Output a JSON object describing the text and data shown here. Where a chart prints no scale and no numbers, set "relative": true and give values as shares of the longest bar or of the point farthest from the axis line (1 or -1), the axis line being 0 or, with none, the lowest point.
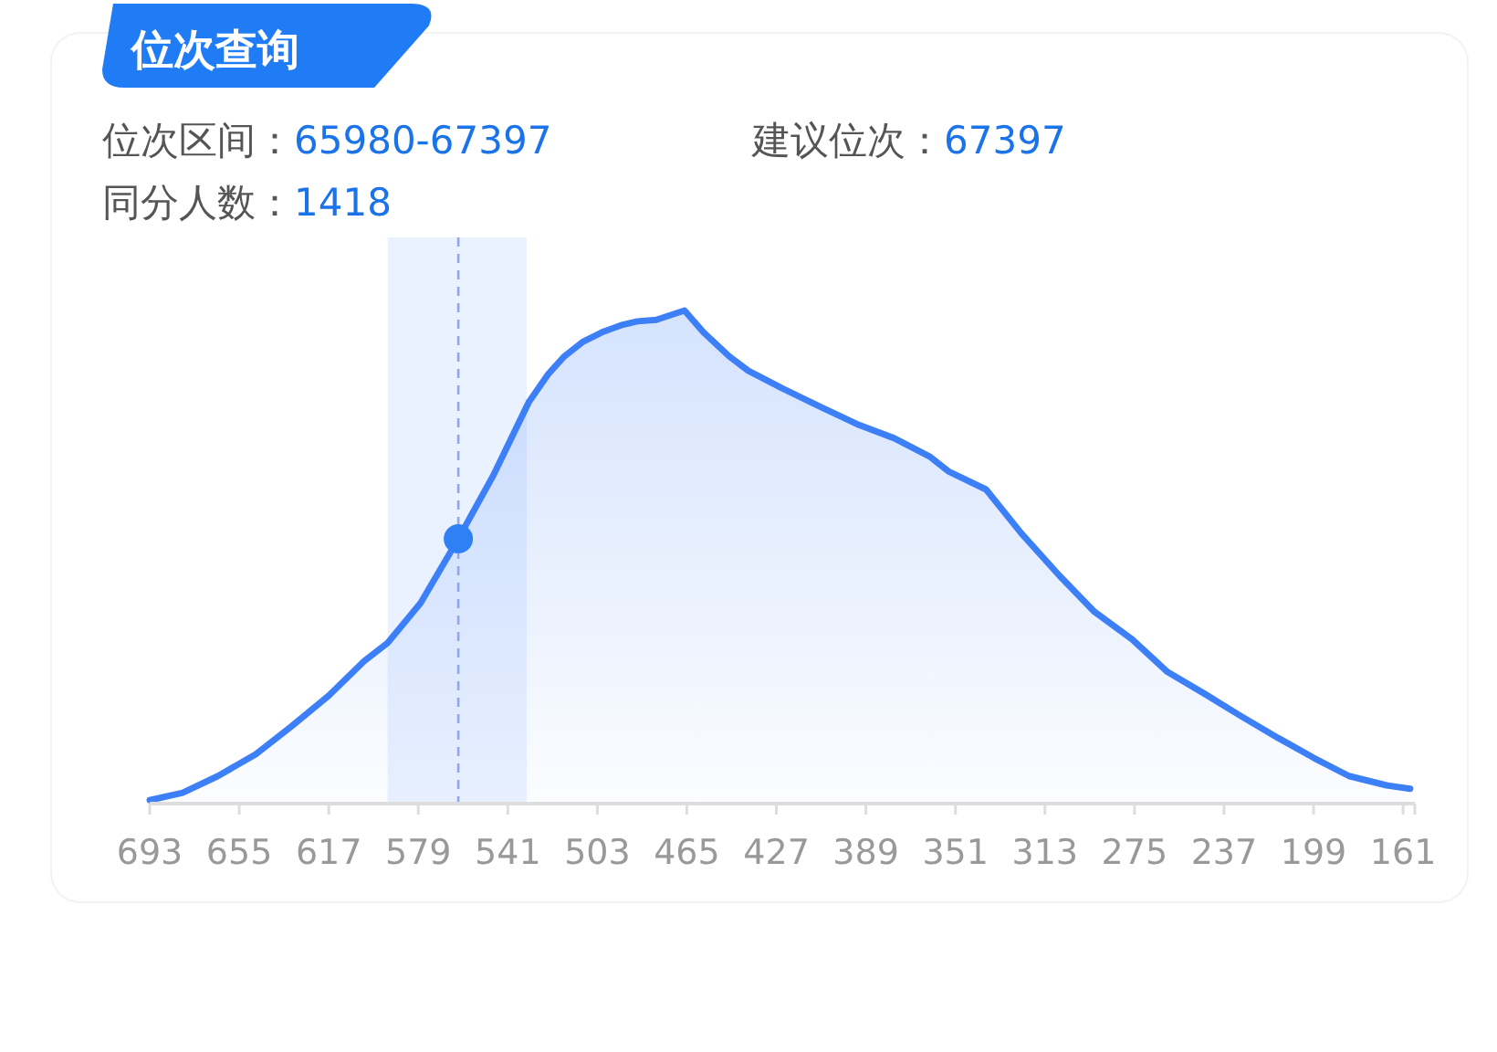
{
  "chart_data": {
    "type": "area",
    "title": "位次查询",
    "relative": true,
    "tick_labels": "x",
    "grid": false,
    "annotations": [
      "位次区间：65980-67397",
      "建议位次：67397",
      "同分人数：1418"
    ],
    "xlim": [
      693,
      156
    ],
    "xticks": [
      693,
      655,
      617,
      579,
      541,
      503,
      465,
      427,
      389,
      351,
      313,
      275,
      237,
      199,
      161
    ],
    "bands": [
      {
        "axis": "x",
        "from": 592,
        "to": 533,
        "color": "#e6efff"
      }
    ],
    "ref_lines": [
      {
        "axis": "x",
        "value": 562,
        "color": "#8fa8f0",
        "line_style": "dashed"
      }
    ],
    "series": [
      {
        "color": "#3d7ff7",
        "x": [
          693,
          679,
          664,
          648,
          633,
          617,
          602,
          592,
          578,
          562,
          547,
          532,
          524,
          517,
          509,
          501,
          493,
          486,
          478,
          466,
          458,
          447,
          439,
          424,
          408,
          393,
          377,
          362,
          354,
          338,
          323,
          307,
          292,
          276,
          261,
          245,
          230,
          214,
          199,
          184,
          168,
          158
        ],
        "values": [
          0.007,
          0.022,
          0.056,
          0.1,
          0.156,
          0.219,
          0.289,
          0.326,
          0.407,
          0.537,
          0.667,
          0.815,
          0.87,
          0.907,
          0.937,
          0.956,
          0.97,
          0.978,
          0.981,
          1,
          0.956,
          0.907,
          0.878,
          0.841,
          0.804,
          0.77,
          0.741,
          0.704,
          0.674,
          0.637,
          0.548,
          0.463,
          0.389,
          0.333,
          0.267,
          0.222,
          0.178,
          0.133,
          0.093,
          0.056,
          0.037,
          0.03
        ]
      },
      {
        "type": "scatter",
        "color": "#2f7ff5",
        "marker": "circle",
        "x": [
          562
        ],
        "values": [
          0.537
        ]
      }
    ]
  }
}
